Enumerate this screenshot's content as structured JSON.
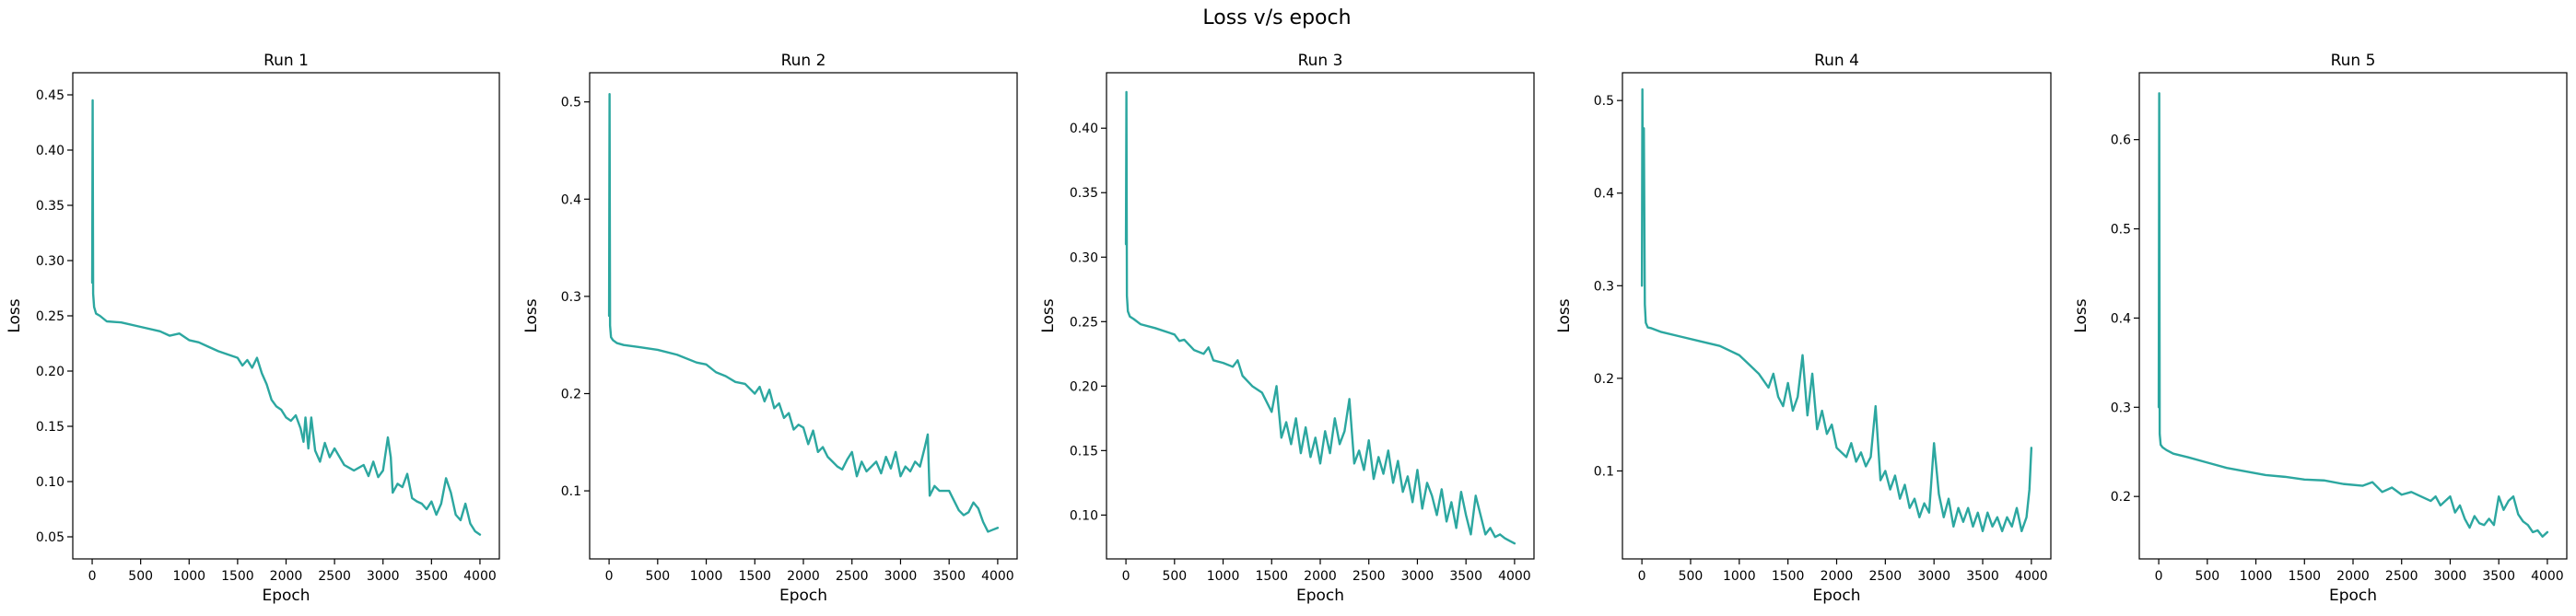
{
  "figure": {
    "title": "Loss v/s epoch",
    "line_color": "#2ca7a0"
  },
  "chart_data": [
    {
      "type": "line",
      "title": "Run 1",
      "xlabel": "Epoch",
      "ylabel": "Loss",
      "xlim": [
        -200,
        4200
      ],
      "ylim": [
        0.03,
        0.47
      ],
      "xticks": [
        0,
        500,
        1000,
        1500,
        2000,
        2500,
        3000,
        3500,
        4000
      ],
      "yticks": [
        0.05,
        0.1,
        0.15,
        0.2,
        0.25,
        0.3,
        0.35,
        0.4,
        0.45
      ],
      "ytick_labels": [
        "0.05",
        "0.10",
        "0.15",
        "0.20",
        "0.25",
        "0.30",
        "0.35",
        "0.40",
        "0.45"
      ],
      "x": [
        0,
        5,
        10,
        20,
        40,
        80,
        150,
        300,
        500,
        700,
        800,
        900,
        1000,
        1100,
        1200,
        1300,
        1400,
        1500,
        1550,
        1600,
        1650,
        1700,
        1750,
        1800,
        1850,
        1900,
        1950,
        2000,
        2050,
        2100,
        2150,
        2180,
        2200,
        2230,
        2260,
        2300,
        2350,
        2400,
        2450,
        2500,
        2600,
        2700,
        2800,
        2850,
        2900,
        2950,
        3000,
        3050,
        3080,
        3100,
        3150,
        3200,
        3250,
        3300,
        3350,
        3400,
        3450,
        3500,
        3550,
        3600,
        3650,
        3700,
        3750,
        3800,
        3850,
        3900,
        3950,
        4000
      ],
      "values": [
        0.28,
        0.445,
        0.27,
        0.258,
        0.252,
        0.25,
        0.245,
        0.244,
        0.24,
        0.236,
        0.232,
        0.234,
        0.228,
        0.226,
        0.222,
        0.218,
        0.215,
        0.212,
        0.205,
        0.21,
        0.203,
        0.212,
        0.198,
        0.188,
        0.174,
        0.168,
        0.165,
        0.158,
        0.155,
        0.16,
        0.148,
        0.136,
        0.158,
        0.13,
        0.158,
        0.128,
        0.118,
        0.135,
        0.122,
        0.13,
        0.115,
        0.11,
        0.115,
        0.105,
        0.118,
        0.104,
        0.11,
        0.14,
        0.122,
        0.09,
        0.098,
        0.095,
        0.107,
        0.085,
        0.082,
        0.08,
        0.075,
        0.082,
        0.07,
        0.08,
        0.103,
        0.09,
        0.07,
        0.065,
        0.08,
        0.062,
        0.055,
        0.052
      ]
    },
    {
      "type": "line",
      "title": "Run 2",
      "xlabel": "Epoch",
      "ylabel": "Loss",
      "xlim": [
        -200,
        4200
      ],
      "ylim": [
        0.03,
        0.53
      ],
      "xticks": [
        0,
        500,
        1000,
        1500,
        2000,
        2500,
        3000,
        3500,
        4000
      ],
      "yticks": [
        0.1,
        0.2,
        0.3,
        0.4,
        0.5
      ],
      "ytick_labels": [
        "0.1",
        "0.2",
        "0.3",
        "0.4",
        "0.5"
      ],
      "x": [
        0,
        5,
        10,
        20,
        40,
        80,
        150,
        300,
        500,
        700,
        900,
        1000,
        1100,
        1200,
        1300,
        1400,
        1500,
        1550,
        1600,
        1650,
        1700,
        1750,
        1800,
        1850,
        1900,
        1950,
        2000,
        2050,
        2100,
        2150,
        2200,
        2250,
        2300,
        2350,
        2400,
        2450,
        2500,
        2550,
        2600,
        2650,
        2700,
        2750,
        2800,
        2850,
        2900,
        2950,
        3000,
        3050,
        3100,
        3150,
        3200,
        3250,
        3280,
        3300,
        3350,
        3400,
        3500,
        3600,
        3650,
        3700,
        3750,
        3800,
        3850,
        3900,
        3950,
        4000
      ],
      "values": [
        0.28,
        0.508,
        0.27,
        0.258,
        0.255,
        0.252,
        0.25,
        0.248,
        0.245,
        0.24,
        0.232,
        0.23,
        0.222,
        0.218,
        0.212,
        0.21,
        0.2,
        0.207,
        0.192,
        0.204,
        0.185,
        0.19,
        0.175,
        0.18,
        0.163,
        0.168,
        0.165,
        0.148,
        0.162,
        0.14,
        0.145,
        0.135,
        0.13,
        0.125,
        0.122,
        0.132,
        0.14,
        0.115,
        0.13,
        0.12,
        0.125,
        0.13,
        0.118,
        0.135,
        0.123,
        0.14,
        0.115,
        0.125,
        0.12,
        0.13,
        0.125,
        0.145,
        0.158,
        0.095,
        0.105,
        0.1,
        0.1,
        0.08,
        0.075,
        0.078,
        0.088,
        0.082,
        0.068,
        0.058,
        0.06,
        0.062
      ]
    },
    {
      "type": "line",
      "title": "Run 3",
      "xlabel": "Epoch",
      "ylabel": "Loss",
      "xlim": [
        -200,
        4200
      ],
      "ylim": [
        0.066,
        0.443
      ],
      "xticks": [
        0,
        500,
        1000,
        1500,
        2000,
        2500,
        3000,
        3500,
        4000
      ],
      "yticks": [
        0.1,
        0.15,
        0.2,
        0.25,
        0.3,
        0.35,
        0.4
      ],
      "ytick_labels": [
        "0.10",
        "0.15",
        "0.20",
        "0.25",
        "0.30",
        "0.35",
        "0.40"
      ],
      "x": [
        0,
        5,
        10,
        20,
        40,
        80,
        150,
        300,
        500,
        550,
        600,
        700,
        800,
        850,
        900,
        1000,
        1100,
        1150,
        1200,
        1300,
        1400,
        1500,
        1550,
        1600,
        1650,
        1700,
        1750,
        1800,
        1850,
        1900,
        1950,
        2000,
        2050,
        2100,
        2150,
        2200,
        2250,
        2300,
        2350,
        2400,
        2450,
        2500,
        2550,
        2600,
        2650,
        2700,
        2750,
        2800,
        2850,
        2900,
        2950,
        3000,
        3050,
        3100,
        3150,
        3200,
        3250,
        3300,
        3350,
        3400,
        3450,
        3500,
        3550,
        3600,
        3650,
        3700,
        3750,
        3800,
        3850,
        3900,
        3950,
        4000
      ],
      "values": [
        0.31,
        0.428,
        0.27,
        0.258,
        0.254,
        0.252,
        0.248,
        0.245,
        0.24,
        0.235,
        0.236,
        0.228,
        0.225,
        0.23,
        0.22,
        0.218,
        0.215,
        0.22,
        0.208,
        0.2,
        0.195,
        0.18,
        0.2,
        0.16,
        0.172,
        0.155,
        0.175,
        0.148,
        0.168,
        0.145,
        0.16,
        0.14,
        0.165,
        0.148,
        0.175,
        0.155,
        0.165,
        0.19,
        0.14,
        0.15,
        0.135,
        0.158,
        0.128,
        0.145,
        0.132,
        0.15,
        0.125,
        0.142,
        0.118,
        0.13,
        0.11,
        0.135,
        0.105,
        0.125,
        0.115,
        0.1,
        0.12,
        0.095,
        0.11,
        0.09,
        0.118,
        0.1,
        0.085,
        0.115,
        0.1,
        0.085,
        0.09,
        0.083,
        0.085,
        0.082,
        0.08,
        0.078
      ]
    },
    {
      "type": "line",
      "title": "Run 4",
      "xlabel": "Epoch",
      "ylabel": "Loss",
      "xlim": [
        -200,
        4200
      ],
      "ylim": [
        0.005,
        0.53
      ],
      "xticks": [
        0,
        500,
        1000,
        1500,
        2000,
        2500,
        3000,
        3500,
        4000
      ],
      "yticks": [
        0.1,
        0.2,
        0.3,
        0.4,
        0.5
      ],
      "ytick_labels": [
        "0.1",
        "0.2",
        "0.3",
        "0.4",
        "0.5"
      ],
      "x": [
        0,
        5,
        10,
        20,
        30,
        40,
        60,
        100,
        200,
        400,
        600,
        800,
        1000,
        1100,
        1200,
        1300,
        1350,
        1400,
        1450,
        1500,
        1550,
        1600,
        1650,
        1700,
        1750,
        1800,
        1850,
        1900,
        1950,
        2000,
        2050,
        2100,
        2150,
        2200,
        2250,
        2300,
        2350,
        2400,
        2450,
        2500,
        2550,
        2600,
        2650,
        2700,
        2750,
        2800,
        2850,
        2900,
        2950,
        3000,
        3050,
        3100,
        3150,
        3200,
        3250,
        3300,
        3350,
        3400,
        3450,
        3500,
        3550,
        3600,
        3650,
        3700,
        3750,
        3800,
        3850,
        3900,
        3950,
        3980,
        4000
      ],
      "values": [
        0.3,
        0.512,
        0.4,
        0.47,
        0.28,
        0.26,
        0.255,
        0.254,
        0.25,
        0.245,
        0.24,
        0.235,
        0.225,
        0.215,
        0.205,
        0.19,
        0.205,
        0.18,
        0.17,
        0.195,
        0.165,
        0.18,
        0.225,
        0.16,
        0.205,
        0.145,
        0.165,
        0.14,
        0.15,
        0.125,
        0.12,
        0.115,
        0.13,
        0.11,
        0.12,
        0.105,
        0.115,
        0.17,
        0.09,
        0.1,
        0.08,
        0.095,
        0.07,
        0.085,
        0.06,
        0.07,
        0.05,
        0.065,
        0.055,
        0.13,
        0.075,
        0.05,
        0.07,
        0.04,
        0.06,
        0.045,
        0.06,
        0.04,
        0.055,
        0.035,
        0.055,
        0.04,
        0.05,
        0.035,
        0.05,
        0.04,
        0.06,
        0.035,
        0.05,
        0.08,
        0.125
      ]
    },
    {
      "type": "line",
      "title": "Run 5",
      "xlabel": "Epoch",
      "ylabel": "Loss",
      "xlim": [
        -200,
        4200
      ],
      "ylim": [
        0.13,
        0.675
      ],
      "xticks": [
        0,
        500,
        1000,
        1500,
        2000,
        2500,
        3000,
        3500,
        4000
      ],
      "yticks": [
        0.2,
        0.3,
        0.4,
        0.5,
        0.6
      ],
      "ytick_labels": [
        "0.2",
        "0.3",
        "0.4",
        "0.5",
        "0.6"
      ],
      "x": [
        0,
        5,
        10,
        20,
        40,
        80,
        150,
        300,
        500,
        700,
        900,
        1100,
        1300,
        1500,
        1700,
        1900,
        2100,
        2200,
        2300,
        2400,
        2500,
        2600,
        2700,
        2800,
        2850,
        2900,
        2950,
        3000,
        3050,
        3100,
        3150,
        3200,
        3250,
        3300,
        3350,
        3400,
        3450,
        3500,
        3550,
        3600,
        3650,
        3700,
        3750,
        3800,
        3850,
        3900,
        3950,
        4000
      ],
      "values": [
        0.3,
        0.652,
        0.27,
        0.258,
        0.255,
        0.252,
        0.248,
        0.244,
        0.238,
        0.232,
        0.228,
        0.224,
        0.222,
        0.219,
        0.218,
        0.214,
        0.212,
        0.216,
        0.205,
        0.21,
        0.202,
        0.205,
        0.2,
        0.195,
        0.2,
        0.19,
        0.195,
        0.2,
        0.182,
        0.19,
        0.175,
        0.165,
        0.178,
        0.17,
        0.168,
        0.175,
        0.168,
        0.2,
        0.185,
        0.195,
        0.2,
        0.18,
        0.172,
        0.168,
        0.16,
        0.162,
        0.155,
        0.16
      ]
    }
  ]
}
